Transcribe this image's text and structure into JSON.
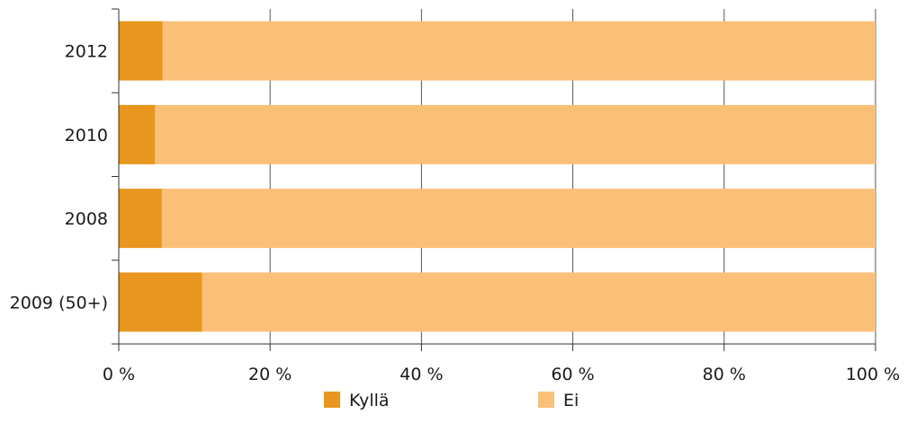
{
  "chart_data": {
    "type": "bar",
    "orientation": "horizontal",
    "stacked": true,
    "categories": [
      "2012",
      "2010",
      "2008",
      "2009 (50+)"
    ],
    "series": [
      {
        "name": "Kyllä",
        "color": "#E8961E",
        "values": [
          5.8,
          4.8,
          5.7,
          11.0
        ]
      },
      {
        "name": "Ei",
        "color": "#FBC078",
        "values": [
          94.2,
          95.2,
          94.3,
          89.0
        ]
      }
    ],
    "xticks": [
      "0 %",
      "20 %",
      "40 %",
      "60 %",
      "80 %",
      "100 %"
    ],
    "xlim": [
      0,
      100
    ],
    "grid": true,
    "legend_position": "bottom"
  }
}
